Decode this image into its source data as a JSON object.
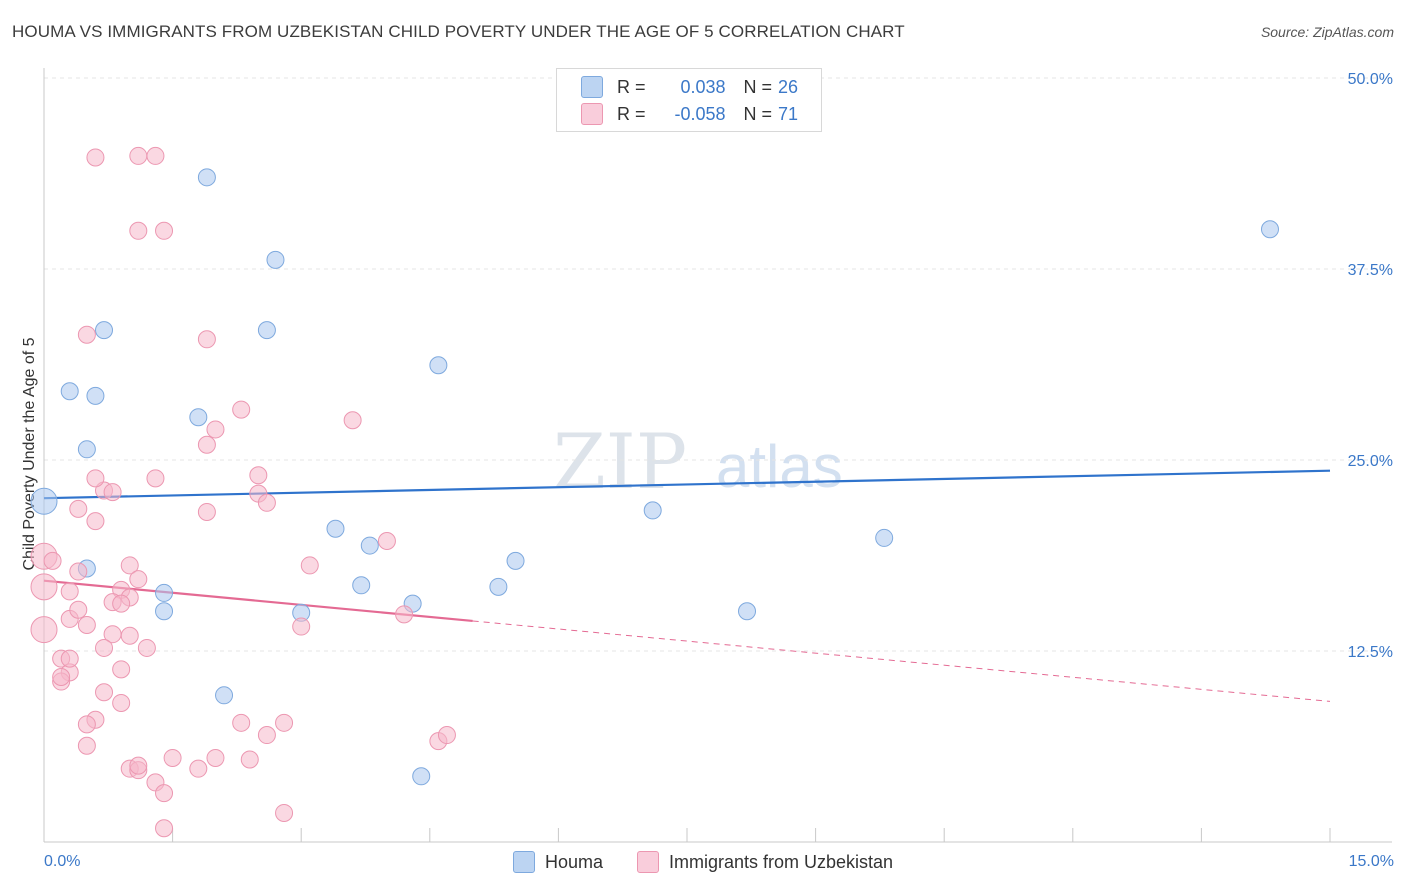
{
  "title": "HOUMA VS IMMIGRANTS FROM UZBEKISTAN CHILD POVERTY UNDER THE AGE OF 5 CORRELATION CHART",
  "source": "Source: ZipAtlas.com",
  "watermark": {
    "zip": "ZIP",
    "atlas": "atlas"
  },
  "legend": {
    "rows": [
      {
        "r_label": "R =",
        "r_value": "0.038",
        "n_label": "N =",
        "n_value": "26"
      },
      {
        "r_label": "R =",
        "r_value": "-0.058",
        "n_label": "N =",
        "n_value": "71"
      }
    ]
  },
  "chart_data": {
    "type": "scatter",
    "title": "HOUMA VS IMMIGRANTS FROM UZBEKISTAN CHILD POVERTY UNDER THE AGE OF 5 CORRELATION CHART",
    "xlabel": "",
    "ylabel": "Child Poverty Under the Age of 5",
    "xlim": [
      0,
      15
    ],
    "ylim": [
      0,
      50
    ],
    "x_tick_labels": [
      "0.0%",
      "15.0%"
    ],
    "y_ticks": [
      12.5,
      25.0,
      37.5,
      50.0
    ],
    "y_tick_labels": [
      "12.5%",
      "25.0%",
      "37.5%",
      "50.0%"
    ],
    "grid": true,
    "series": [
      {
        "name": "Houma",
        "color": "#a9c7ee",
        "stroke": "#7ea9de",
        "line_color": "#2f73cc",
        "r": 0.038,
        "n": 26,
        "trend": {
          "x0": 0,
          "y0": 22.5,
          "x1": 15,
          "y1": 24.3,
          "dashed_from": null
        },
        "points": [
          [
            0.0,
            22.3
          ],
          [
            0.3,
            29.5
          ],
          [
            0.6,
            29.2
          ],
          [
            0.7,
            33.5
          ],
          [
            0.5,
            25.7
          ],
          [
            0.5,
            17.9
          ],
          [
            1.9,
            43.5
          ],
          [
            2.7,
            38.1
          ],
          [
            2.6,
            33.5
          ],
          [
            1.8,
            27.8
          ],
          [
            1.4,
            16.3
          ],
          [
            1.4,
            15.1
          ],
          [
            2.1,
            9.6
          ],
          [
            3.4,
            20.5
          ],
          [
            3.8,
            19.4
          ],
          [
            3.7,
            16.8
          ],
          [
            3.0,
            15.0
          ],
          [
            4.6,
            31.2
          ],
          [
            4.3,
            15.6
          ],
          [
            5.3,
            16.7
          ],
          [
            5.5,
            18.4
          ],
          [
            7.1,
            21.7
          ],
          [
            8.2,
            15.1
          ],
          [
            9.8,
            19.9
          ],
          [
            14.3,
            40.1
          ],
          [
            4.4,
            4.3
          ]
        ]
      },
      {
        "name": "Immigrants from Uzbekistan",
        "color": "#f5b8cb",
        "stroke": "#ec97b1",
        "line_color": "#e46a93",
        "r": -0.058,
        "n": 71,
        "trend": {
          "x0": 0,
          "y0": 17.1,
          "x1": 15,
          "y1": 9.2,
          "dashed_from": 5.0
        },
        "points": [
          [
            0.0,
            18.7
          ],
          [
            0.0,
            16.7
          ],
          [
            0.0,
            13.9
          ],
          [
            0.1,
            18.4
          ],
          [
            0.2,
            12.0
          ],
          [
            0.3,
            16.4
          ],
          [
            0.3,
            14.6
          ],
          [
            0.3,
            11.1
          ],
          [
            0.2,
            10.5
          ],
          [
            0.4,
            17.7
          ],
          [
            0.4,
            15.2
          ],
          [
            0.5,
            14.2
          ],
          [
            0.6,
            21.0
          ],
          [
            0.4,
            21.8
          ],
          [
            0.7,
            23.0
          ],
          [
            0.6,
            23.8
          ],
          [
            0.8,
            22.9
          ],
          [
            0.5,
            33.2
          ],
          [
            0.6,
            44.8
          ],
          [
            1.1,
            44.9
          ],
          [
            1.3,
            44.9
          ],
          [
            1.1,
            40.0
          ],
          [
            1.4,
            40.0
          ],
          [
            1.9,
            32.9
          ],
          [
            2.3,
            28.3
          ],
          [
            2.0,
            27.0
          ],
          [
            1.9,
            26.0
          ],
          [
            2.5,
            24.0
          ],
          [
            2.5,
            22.8
          ],
          [
            2.6,
            22.2
          ],
          [
            1.9,
            21.6
          ],
          [
            1.3,
            23.8
          ],
          [
            1.0,
            18.1
          ],
          [
            1.1,
            17.2
          ],
          [
            0.9,
            16.5
          ],
          [
            1.0,
            16.0
          ],
          [
            0.8,
            15.7
          ],
          [
            0.9,
            15.6
          ],
          [
            1.0,
            13.5
          ],
          [
            0.8,
            13.6
          ],
          [
            0.7,
            12.7
          ],
          [
            1.2,
            12.7
          ],
          [
            0.9,
            11.3
          ],
          [
            0.7,
            9.8
          ],
          [
            0.9,
            9.1
          ],
          [
            0.6,
            8.0
          ],
          [
            0.5,
            7.7
          ],
          [
            3.1,
            18.1
          ],
          [
            3.0,
            14.1
          ],
          [
            4.0,
            19.7
          ],
          [
            3.6,
            27.6
          ],
          [
            4.2,
            14.9
          ],
          [
            2.3,
            7.8
          ],
          [
            2.6,
            7.0
          ],
          [
            2.8,
            7.8
          ],
          [
            4.6,
            6.6
          ],
          [
            4.7,
            7.0
          ],
          [
            1.0,
            4.8
          ],
          [
            1.1,
            4.7
          ],
          [
            1.1,
            5.0
          ],
          [
            1.5,
            5.5
          ],
          [
            1.8,
            4.8
          ],
          [
            2.0,
            5.5
          ],
          [
            2.4,
            5.4
          ],
          [
            1.3,
            3.9
          ],
          [
            1.4,
            3.2
          ],
          [
            2.8,
            1.9
          ],
          [
            1.4,
            0.9
          ],
          [
            0.3,
            12.0
          ],
          [
            0.2,
            10.8
          ],
          [
            0.5,
            6.3
          ]
        ]
      }
    ]
  }
}
